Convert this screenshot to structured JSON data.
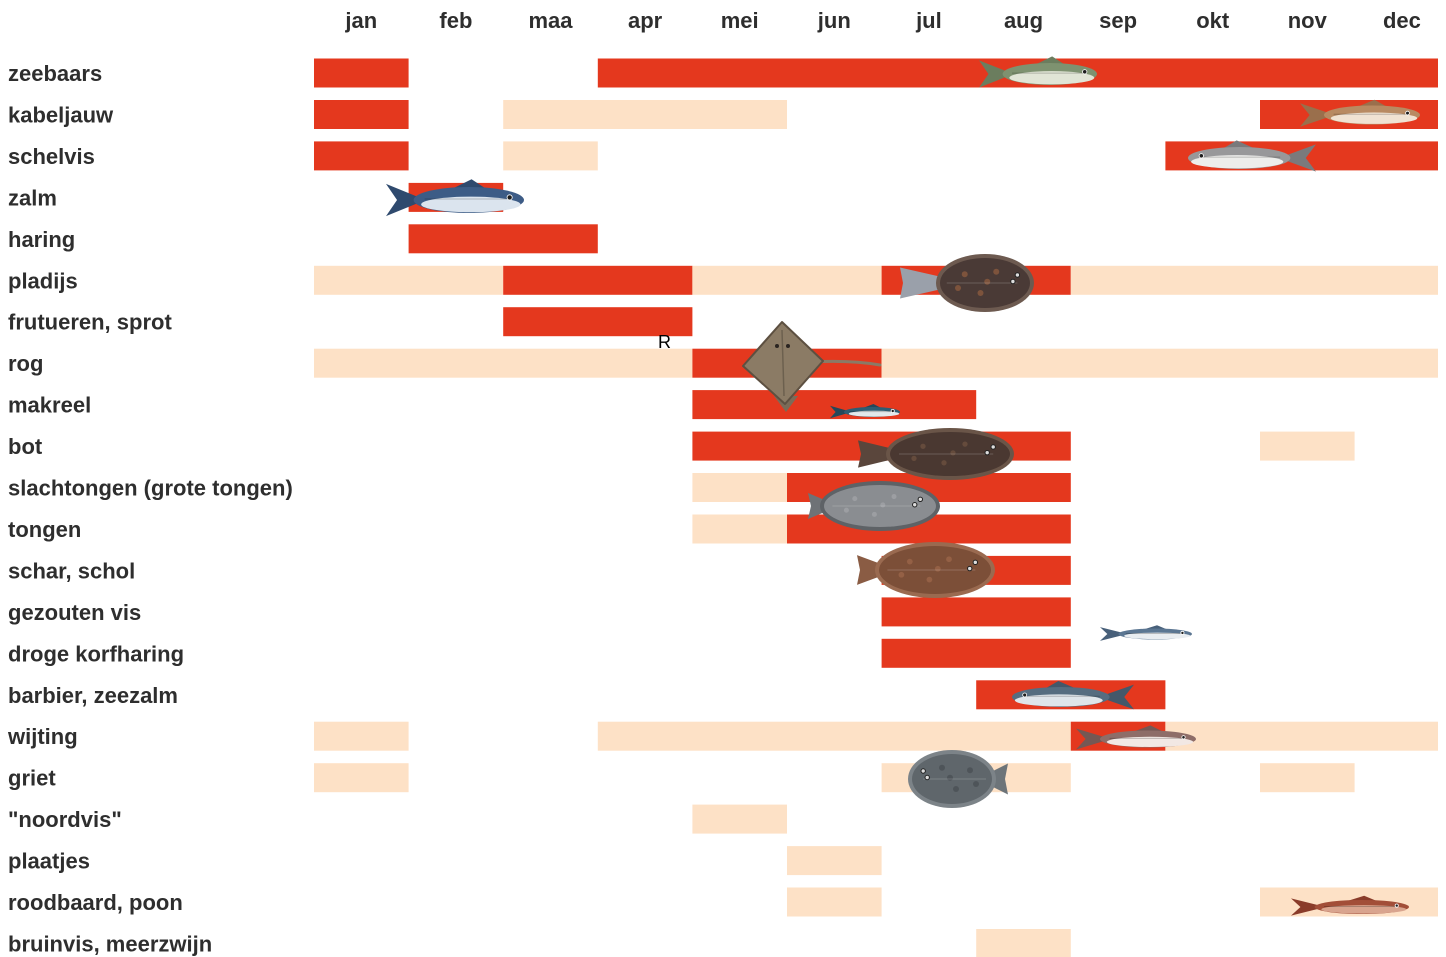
{
  "chart_data": {
    "type": "heatmap",
    "x": [
      "jan",
      "feb",
      "maa",
      "apr",
      "mei",
      "jun",
      "jul",
      "aug",
      "sep",
      "okt",
      "nov",
      "dec"
    ],
    "y": [
      "zeebaars",
      "kabeljauw",
      "schelvis",
      "zalm",
      "haring",
      "pladijs",
      "frutueren, sprot",
      "rog",
      "makreel",
      "bot",
      "slachtongen (grote tongen)",
      "tongen",
      "schar, schol",
      "gezouten vis",
      "droge korfharing",
      "barbier, zeezalm",
      "wijting",
      "griet",
      "\"noordvis\"",
      "plaatjes",
      "roodbaard, poon",
      "bruinvis, meerzwijn"
    ],
    "values": [
      [
        2,
        0,
        0,
        2,
        2,
        2,
        2,
        2,
        2,
        2,
        2,
        2
      ],
      [
        2,
        0,
        1,
        1,
        1,
        0,
        0,
        0,
        0,
        0,
        2,
        2
      ],
      [
        2,
        0,
        1,
        0,
        0,
        0,
        0,
        0,
        0,
        2,
        2,
        2
      ],
      [
        0,
        2,
        0,
        0,
        0,
        0,
        0,
        0,
        0,
        0,
        0,
        0
      ],
      [
        0,
        2,
        2,
        0,
        0,
        0,
        0,
        0,
        0,
        0,
        0,
        0
      ],
      [
        1,
        1,
        2,
        2,
        1,
        1,
        2,
        2,
        1,
        1,
        1,
        1
      ],
      [
        0,
        0,
        2,
        2,
        0,
        0,
        0,
        0,
        0,
        0,
        0,
        0
      ],
      [
        1,
        1,
        1,
        1,
        2,
        2,
        1,
        1,
        1,
        1,
        1,
        1
      ],
      [
        0,
        0,
        0,
        0,
        2,
        2,
        2,
        0,
        0,
        0,
        0,
        0
      ],
      [
        0,
        0,
        0,
        0,
        2,
        2,
        2,
        2,
        0,
        0,
        1,
        0
      ],
      [
        0,
        0,
        0,
        0,
        1,
        2,
        2,
        2,
        0,
        0,
        0,
        0
      ],
      [
        0,
        0,
        0,
        0,
        1,
        2,
        2,
        2,
        0,
        0,
        0,
        0
      ],
      [
        0,
        0,
        0,
        0,
        0,
        0,
        2,
        2,
        0,
        0,
        0,
        0
      ],
      [
        0,
        0,
        0,
        0,
        0,
        0,
        2,
        2,
        0,
        0,
        0,
        0
      ],
      [
        0,
        0,
        0,
        0,
        0,
        0,
        2,
        2,
        0,
        0,
        0,
        0
      ],
      [
        0,
        0,
        0,
        0,
        0,
        0,
        0,
        2,
        2,
        0,
        0,
        0
      ],
      [
        1,
        0,
        0,
        1,
        1,
        1,
        1,
        1,
        2,
        1,
        1,
        1
      ],
      [
        1,
        0,
        0,
        0,
        0,
        0,
        1,
        1,
        0,
        0,
        1,
        0
      ],
      [
        0,
        0,
        0,
        0,
        1,
        0,
        0,
        0,
        0,
        0,
        0,
        0
      ],
      [
        0,
        0,
        0,
        0,
        0,
        1,
        0,
        0,
        0,
        0,
        0,
        0
      ],
      [
        0,
        0,
        0,
        0,
        0,
        1,
        0,
        0,
        0,
        0,
        1,
        1
      ],
      [
        0,
        0,
        0,
        0,
        0,
        0,
        0,
        1,
        0,
        0,
        0,
        0
      ]
    ],
    "colors": {
      "1": "#fde1c6",
      "2": "#e4381e"
    },
    "background": "#ffffff",
    "grid": false,
    "legend": "none",
    "annotations": [
      "R"
    ]
  },
  "illustrations": [
    "sea-bass-icon",
    "cod-icon",
    "haddock-icon",
    "salmon-icon",
    "plaice-icon",
    "ray-icon",
    "mackerel-icon",
    "flounder-icon",
    "sole-icon",
    "dab-icon",
    "herring-icon",
    "sea-trout-icon",
    "whiting-icon",
    "brill-icon",
    "gurnard-icon"
  ]
}
